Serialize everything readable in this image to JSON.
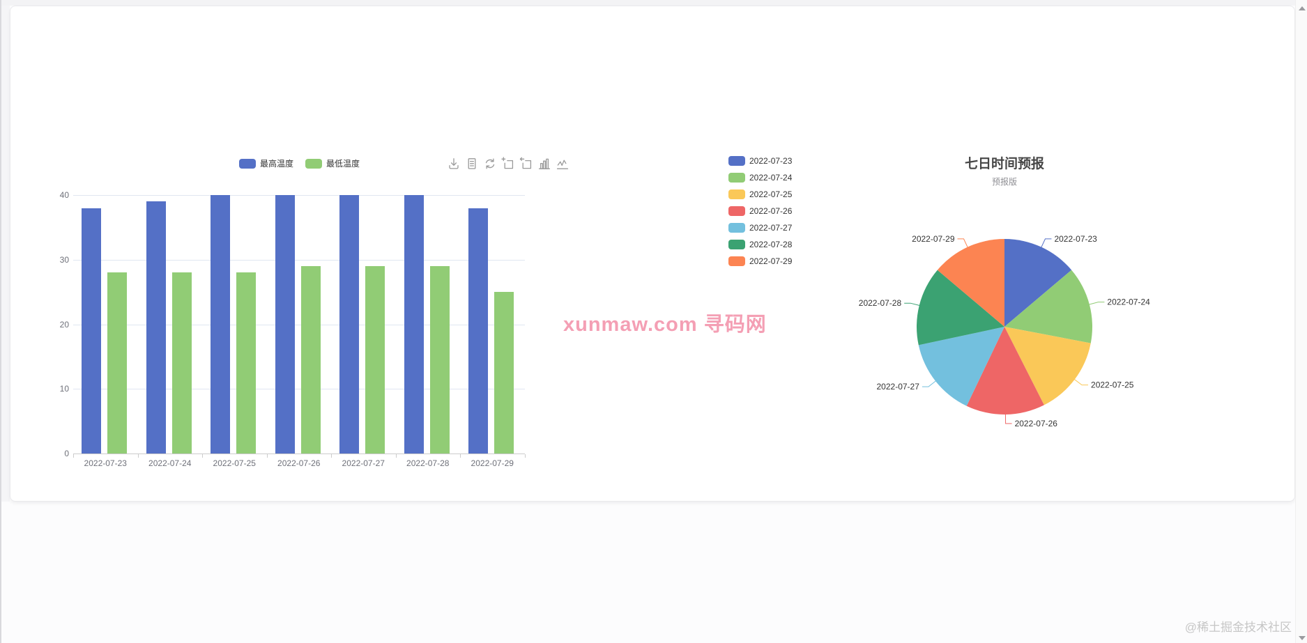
{
  "page": {
    "watermark": "xunmaw.com 寻码网",
    "attribution": "@稀土掘金技术社区",
    "background": "#fcfcfd",
    "card_background": "#ffffff"
  },
  "toolbox": {
    "color": "#999999",
    "items": [
      {
        "name": "save-as-image"
      },
      {
        "name": "data-view"
      },
      {
        "name": "restore"
      },
      {
        "name": "data-zoom"
      },
      {
        "name": "data-zoom-reset"
      },
      {
        "name": "magic-type-bar"
      },
      {
        "name": "magic-type-line"
      }
    ]
  },
  "chart_data": [
    {
      "type": "bar",
      "title": "",
      "categories": [
        "2022-07-23",
        "2022-07-24",
        "2022-07-25",
        "2022-07-26",
        "2022-07-27",
        "2022-07-28",
        "2022-07-29"
      ],
      "series": [
        {
          "name": "最高温度",
          "color": "#5470c6",
          "values": [
            38,
            39,
            40,
            40,
            40,
            40,
            38
          ]
        },
        {
          "name": "最低温度",
          "color": "#91cc75",
          "values": [
            28,
            28,
            28,
            29,
            29,
            29,
            25
          ]
        }
      ],
      "xlabel": "",
      "ylabel": "",
      "ylim": [
        0,
        40
      ],
      "yticks": [
        0,
        10,
        20,
        30,
        40
      ],
      "grid": true,
      "legend_position": "top",
      "axis_label_color": "#6e7079",
      "grid_color": "#e0e6f1",
      "axis_line_color": "#cccccc"
    },
    {
      "type": "pie",
      "title": "七日时间预报",
      "subtitle": "预报版",
      "labels": [
        "2022-07-23",
        "2022-07-24",
        "2022-07-25",
        "2022-07-26",
        "2022-07-27",
        "2022-07-28",
        "2022-07-29"
      ],
      "values": [
        38,
        39,
        40,
        40,
        40,
        40,
        38
      ],
      "colors": [
        "#5470c6",
        "#91cc75",
        "#fac858",
        "#ee6666",
        "#73c0de",
        "#3ba272",
        "#fc8452"
      ],
      "legend_position": "left",
      "start_angle_deg": 0,
      "clockwise": true,
      "label_color": "#333333",
      "title_color": "#464646",
      "subtitle_color": "#8f8f94"
    }
  ]
}
